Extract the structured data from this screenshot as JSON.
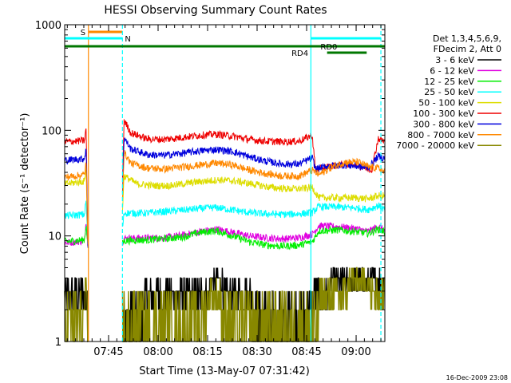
{
  "chart_data": {
    "type": "line",
    "title": "HESSI Observing Summary Count Rates",
    "xlabel": "Start Time (13-May-07 07:31:42)",
    "ylabel": "Count Rate (s⁻¹ detector⁻¹)",
    "yscale": "log",
    "ylim": [
      1,
      1000
    ],
    "xlim_minutes_after_start": [
      0,
      97
    ],
    "x_ticks": [
      {
        "label": "07:45",
        "minute": 13.3
      },
      {
        "label": "08:00",
        "minute": 28.3
      },
      {
        "label": "08:15",
        "minute": 43.3
      },
      {
        "label": "08:30",
        "minute": 58.3
      },
      {
        "label": "08:45",
        "minute": 73.3
      },
      {
        "label": "09:00",
        "minute": 88.3
      }
    ],
    "y_ticks": [
      {
        "label": "1",
        "value": 1
      },
      {
        "label": "10",
        "value": 10
      },
      {
        "label": "100",
        "value": 100
      },
      {
        "label": "1000",
        "value": 1000
      }
    ],
    "legend_header": [
      "Det 1,3,4,5,6,9,",
      "FDecim 2, Att 0"
    ],
    "legend_position": "right",
    "series": [
      {
        "name": "3 - 6 keV",
        "color": "#000000",
        "points": [
          [
            0,
            2.6
          ],
          [
            6,
            2.6
          ],
          [
            6.5,
            3.5
          ],
          [
            7,
            2.0
          ],
          [
            17,
            2.0
          ],
          [
            18,
            1.9
          ],
          [
            21,
            2.0
          ],
          [
            25,
            2.7
          ],
          [
            29,
            2.8
          ],
          [
            35,
            3.0
          ],
          [
            41,
            3.4
          ],
          [
            47,
            3.6
          ],
          [
            53,
            3.0
          ],
          [
            58,
            2.4
          ],
          [
            63,
            2.0
          ],
          [
            68,
            2.2
          ],
          [
            73,
            2.4
          ],
          [
            75,
            2.4
          ],
          [
            80,
            3.4
          ],
          [
            84,
            4.0
          ],
          [
            88,
            4.4
          ],
          [
            92,
            4.4
          ],
          [
            95,
            3.6
          ],
          [
            97,
            3.6
          ]
        ]
      },
      {
        "name": "6 - 12 keV",
        "color": "#e000e0",
        "points": [
          [
            0,
            8.6
          ],
          [
            6,
            9.0
          ],
          [
            6.5,
            14
          ],
          [
            7,
            8
          ],
          [
            17,
            8
          ],
          [
            18,
            9.5
          ],
          [
            20,
            9.5
          ],
          [
            25,
            9.6
          ],
          [
            30,
            9.6
          ],
          [
            36,
            10.2
          ],
          [
            41,
            11.0
          ],
          [
            46,
            11.6
          ],
          [
            51,
            10.8
          ],
          [
            56,
            10.0
          ],
          [
            61,
            9.6
          ],
          [
            66,
            9.4
          ],
          [
            71,
            9.6
          ],
          [
            75,
            10.4
          ],
          [
            77,
            12.5
          ],
          [
            83,
            12.2
          ],
          [
            88,
            11.8
          ],
          [
            92,
            11.0
          ],
          [
            95,
            12.4
          ],
          [
            97,
            11.2
          ]
        ]
      },
      {
        "name": "12 - 25 keV",
        "color": "#00ee00",
        "points": [
          [
            0,
            8.8
          ],
          [
            6,
            9.2
          ],
          [
            6.5,
            13
          ],
          [
            7,
            8
          ],
          [
            17,
            8
          ],
          [
            18,
            9.0
          ],
          [
            25,
            9.2
          ],
          [
            30,
            9.4
          ],
          [
            36,
            9.8
          ],
          [
            41,
            10.8
          ],
          [
            46,
            11.2
          ],
          [
            51,
            10.0
          ],
          [
            56,
            8.8
          ],
          [
            61,
            8.2
          ],
          [
            66,
            8.0
          ],
          [
            71,
            8.2
          ],
          [
            75,
            8.8
          ],
          [
            77,
            11.2
          ],
          [
            83,
            11.4
          ],
          [
            88,
            11.0
          ],
          [
            92,
            10.6
          ],
          [
            95,
            11.6
          ],
          [
            97,
            11.0
          ]
        ]
      },
      {
        "name": "25 - 50 keV",
        "color": "#00ffff",
        "points": [
          [
            0,
            15.5
          ],
          [
            6,
            16.0
          ],
          [
            6.5,
            22
          ],
          [
            7,
            8
          ],
          [
            17,
            8
          ],
          [
            18,
            16.5
          ],
          [
            25,
            16.5
          ],
          [
            30,
            17.0
          ],
          [
            36,
            17.6
          ],
          [
            41,
            18.2
          ],
          [
            46,
            18.6
          ],
          [
            51,
            17.6
          ],
          [
            56,
            16.6
          ],
          [
            61,
            16.2
          ],
          [
            66,
            16.0
          ],
          [
            71,
            16.2
          ],
          [
            75,
            16.6
          ],
          [
            77,
            19.0
          ],
          [
            83,
            18.8
          ],
          [
            88,
            18.4
          ],
          [
            92,
            17.8
          ],
          [
            95,
            19.4
          ],
          [
            97,
            17.6
          ]
        ]
      },
      {
        "name": "50 - 100 keV",
        "color": "#dddd00",
        "points": [
          [
            0,
            31
          ],
          [
            6,
            33
          ],
          [
            6.5,
            45
          ],
          [
            7,
            8
          ],
          [
            17,
            8
          ],
          [
            18,
            37
          ],
          [
            22,
            31
          ],
          [
            27,
            30
          ],
          [
            32,
            30
          ],
          [
            37,
            31.5
          ],
          [
            42,
            33
          ],
          [
            47,
            34
          ],
          [
            52,
            33
          ],
          [
            57,
            31
          ],
          [
            62,
            29
          ],
          [
            67,
            28
          ],
          [
            72,
            28
          ],
          [
            75,
            29
          ],
          [
            77,
            23
          ],
          [
            83,
            23
          ],
          [
            88,
            23
          ],
          [
            92,
            22.5
          ],
          [
            95,
            24
          ],
          [
            97,
            24
          ]
        ]
      },
      {
        "name": "100 - 300 keV",
        "color": "#ee0000",
        "points": [
          [
            0,
            78
          ],
          [
            6,
            80
          ],
          [
            6.5,
            105
          ],
          [
            7,
            8
          ],
          [
            17,
            8
          ],
          [
            18,
            125
          ],
          [
            20,
            95
          ],
          [
            25,
            83
          ],
          [
            30,
            82
          ],
          [
            36,
            86
          ],
          [
            41,
            90
          ],
          [
            46,
            92
          ],
          [
            51,
            88
          ],
          [
            56,
            82
          ],
          [
            61,
            79
          ],
          [
            66,
            78
          ],
          [
            71,
            79
          ],
          [
            75,
            90
          ],
          [
            76,
            42
          ],
          [
            78,
            44
          ],
          [
            84,
            48
          ],
          [
            88,
            48
          ],
          [
            91,
            44
          ],
          [
            93,
            42
          ],
          [
            95,
            84
          ],
          [
            97,
            78
          ]
        ]
      },
      {
        "name": "300 - 800 keV",
        "color": "#0000dd",
        "points": [
          [
            0,
            52
          ],
          [
            6,
            54
          ],
          [
            6.5,
            70
          ],
          [
            7,
            8
          ],
          [
            17,
            8
          ],
          [
            18,
            85
          ],
          [
            20,
            67
          ],
          [
            25,
            59
          ],
          [
            30,
            58
          ],
          [
            36,
            61
          ],
          [
            41,
            64
          ],
          [
            46,
            66
          ],
          [
            51,
            63
          ],
          [
            56,
            56
          ],
          [
            61,
            51
          ],
          [
            66,
            48
          ],
          [
            71,
            48
          ],
          [
            75,
            55
          ],
          [
            76,
            43
          ],
          [
            80,
            46
          ],
          [
            84,
            47
          ],
          [
            88,
            46
          ],
          [
            92,
            44
          ],
          [
            95,
            57
          ],
          [
            97,
            54
          ]
        ]
      },
      {
        "name": "800 - 7000 keV",
        "color": "#ff8800",
        "points": [
          [
            0,
            36
          ],
          [
            6,
            38
          ],
          [
            6.5,
            52
          ],
          [
            7,
            8
          ],
          [
            17,
            8
          ],
          [
            18,
            62
          ],
          [
            20,
            49
          ],
          [
            25,
            44
          ],
          [
            30,
            43
          ],
          [
            36,
            45
          ],
          [
            41,
            47
          ],
          [
            46,
            49
          ],
          [
            51,
            47
          ],
          [
            56,
            42
          ],
          [
            61,
            39
          ],
          [
            66,
            37
          ],
          [
            71,
            37
          ],
          [
            75,
            42
          ],
          [
            77,
            38
          ],
          [
            81,
            45
          ],
          [
            85,
            50
          ],
          [
            89,
            50
          ],
          [
            92,
            45
          ],
          [
            95,
            44
          ],
          [
            97,
            40
          ]
        ]
      },
      {
        "name": "7000 - 20000 keV",
        "color": "#888800",
        "points": [
          [
            0,
            2.4
          ],
          [
            6,
            2.4
          ],
          [
            6.5,
            3.0
          ],
          [
            7,
            1.0
          ],
          [
            17,
            1.0
          ],
          [
            18,
            1.6
          ],
          [
            22,
            2.0
          ],
          [
            28,
            2.0
          ],
          [
            34,
            2.0
          ],
          [
            40,
            2.4
          ],
          [
            46,
            2.6
          ],
          [
            52,
            2.2
          ],
          [
            58,
            1.8
          ],
          [
            64,
            1.6
          ],
          [
            70,
            1.6
          ],
          [
            75,
            1.8
          ],
          [
            78,
            2.8
          ],
          [
            84,
            3.4
          ],
          [
            88,
            3.6
          ],
          [
            92,
            3.6
          ],
          [
            95,
            3.0
          ],
          [
            97,
            3.0
          ]
        ]
      }
    ],
    "attenuator_markers": {
      "color": "#ff8800",
      "label": "S",
      "events_minutes": [
        7.2
      ],
      "bar_minutes": [
        7.2,
        17.5
      ]
    },
    "saa_night_markers": {
      "color": "#00ffff",
      "label": "N",
      "events_minutes": [
        17.5,
        74.6,
        95.8
      ],
      "bar_minutes": [
        [
          0,
          17.5
        ],
        [
          74.6,
          95.8
        ]
      ]
    },
    "decimation_markers": {
      "color": "#007700",
      "labels": [
        "RD4",
        "RD0"
      ],
      "bar_minutes": [
        [
          0,
          97
        ]
      ]
    }
  },
  "footer": {
    "timestamp": "16-Dec-2009 23:08"
  }
}
